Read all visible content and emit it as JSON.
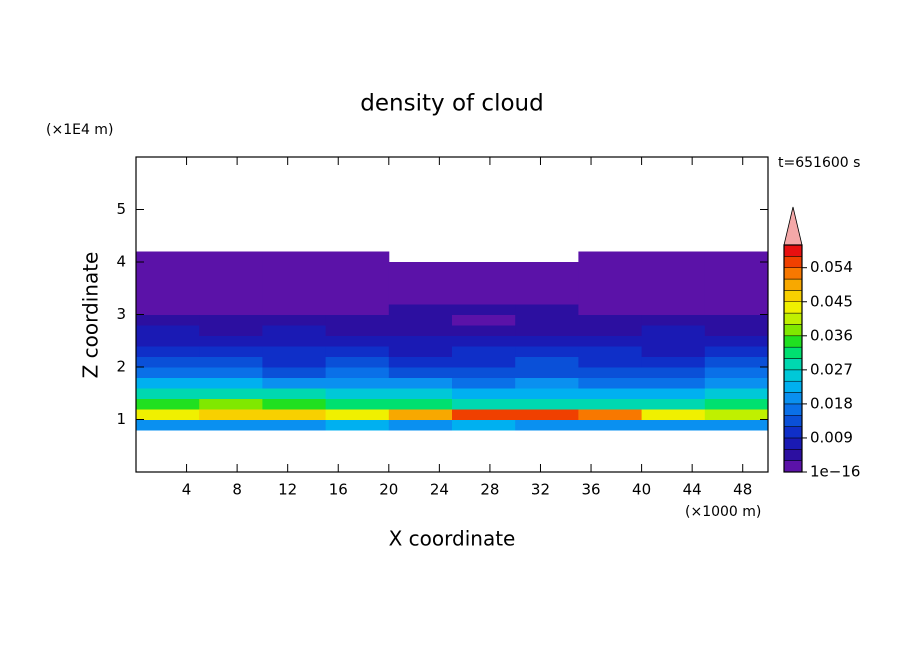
{
  "chart_data": {
    "type": "heatmap",
    "title": "density of cloud",
    "x_label": "X coordinate",
    "y_label": "Z coordinate",
    "x_unit": "(×1000 m)",
    "y_unit": "(×1E4 m)",
    "annotation": "t=651600 s",
    "xlim": [
      0,
      50
    ],
    "ylim": [
      0,
      6
    ],
    "xticks": [
      4,
      8,
      12,
      16,
      20,
      24,
      28,
      32,
      36,
      40,
      44,
      48
    ],
    "yticks": [
      1,
      2,
      3,
      4,
      5
    ],
    "x": [
      2.5,
      7.5,
      12.5,
      17.5,
      22.5,
      27.5,
      32.5,
      37.5,
      42.5,
      47.5
    ],
    "y": [
      0.9,
      1.1,
      1.3,
      1.5,
      1.7,
      1.9,
      2.1,
      2.3,
      2.5,
      2.7,
      2.9,
      3.1,
      3.3,
      3.5,
      3.7,
      3.9,
      4.1
    ],
    "z": [
      [
        0.018,
        0.02,
        0.019,
        0.021,
        0.02,
        0.022,
        0.02,
        0.019,
        0.018,
        0.02
      ],
      [
        0.042,
        0.045,
        0.047,
        0.044,
        0.05,
        0.055,
        0.056,
        0.052,
        0.043,
        0.041
      ],
      [
        0.033,
        0.036,
        0.034,
        0.031,
        0.03,
        0.029,
        0.028,
        0.027,
        0.029,
        0.032
      ],
      [
        0.027,
        0.029,
        0.028,
        0.026,
        0.024,
        0.023,
        0.022,
        0.021,
        0.023,
        0.025
      ],
      [
        0.021,
        0.022,
        0.02,
        0.019,
        0.018,
        0.017,
        0.018,
        0.016,
        0.017,
        0.019
      ],
      [
        0.016,
        0.015,
        0.014,
        0.015,
        0.013,
        0.014,
        0.013,
        0.012,
        0.014,
        0.015
      ],
      [
        0.012,
        0.013,
        0.011,
        0.012,
        0.01,
        0.011,
        0.012,
        0.01,
        0.011,
        0.012
      ],
      [
        0.01,
        0.009,
        0.01,
        0.009,
        0.008,
        0.009,
        0.01,
        0.009,
        0.008,
        0.009
      ],
      [
        0.008,
        0.007,
        0.008,
        0.007,
        0.006,
        0.007,
        0.008,
        0.007,
        0.007,
        0.008
      ],
      [
        0.006,
        0.005,
        0.006,
        0.005,
        0.005,
        0.004,
        0.005,
        0.005,
        0.006,
        0.005
      ],
      [
        0.003,
        0.004,
        0.003,
        0.004,
        0.003,
        0.002,
        0.003,
        0.004,
        0.003,
        0.003
      ],
      [
        0.002,
        0.002,
        0.002,
        0.002,
        0.003,
        0.003,
        0.003,
        0.002,
        0.002,
        0.002
      ],
      [
        0.001,
        0.001,
        0.001,
        0.001,
        0.001,
        0.001,
        0.001,
        0.001,
        0.001,
        0.001
      ],
      [
        0.001,
        0.001,
        0.001,
        0.001,
        0.001,
        0.001,
        0.001,
        0.001,
        0.001,
        0.001
      ],
      [
        0.001,
        0.001,
        0.001,
        0.001,
        0.001,
        0.001,
        0.001,
        0.001,
        0.001,
        0.001
      ],
      [
        0.001,
        0.001,
        0.001,
        0.001,
        0.001,
        0.001,
        0.001,
        0.001,
        0.001,
        0.001
      ],
      [
        0.001,
        0.001,
        0.001,
        0.001,
        null,
        null,
        null,
        0.001,
        0.001,
        0.001
      ]
    ],
    "colorbar": {
      "levels": [
        0,
        0.003,
        0.006,
        0.009,
        0.012,
        0.015,
        0.018,
        0.021,
        0.024,
        0.027,
        0.03,
        0.033,
        0.036,
        0.039,
        0.042,
        0.045,
        0.048,
        0.051,
        0.054,
        0.057,
        0.06
      ],
      "colors": [
        "#5b12a8",
        "#2c0fa0",
        "#1a1ab4",
        "#0f2fc8",
        "#0a50d8",
        "#0a70e8",
        "#0a90f0",
        "#00b0f0",
        "#00c8d8",
        "#00d8b0",
        "#00e070",
        "#20e020",
        "#80e800",
        "#c0f000",
        "#f0f000",
        "#f8d000",
        "#f8a800",
        "#f87800",
        "#f04000",
        "#e81010"
      ],
      "extend_color": "#f4a8a8",
      "ticks": [
        {
          "value": 1e-16,
          "label": "1e−16"
        },
        0.009,
        0.018,
        0.027,
        0.036,
        0.045,
        0.054
      ]
    }
  }
}
